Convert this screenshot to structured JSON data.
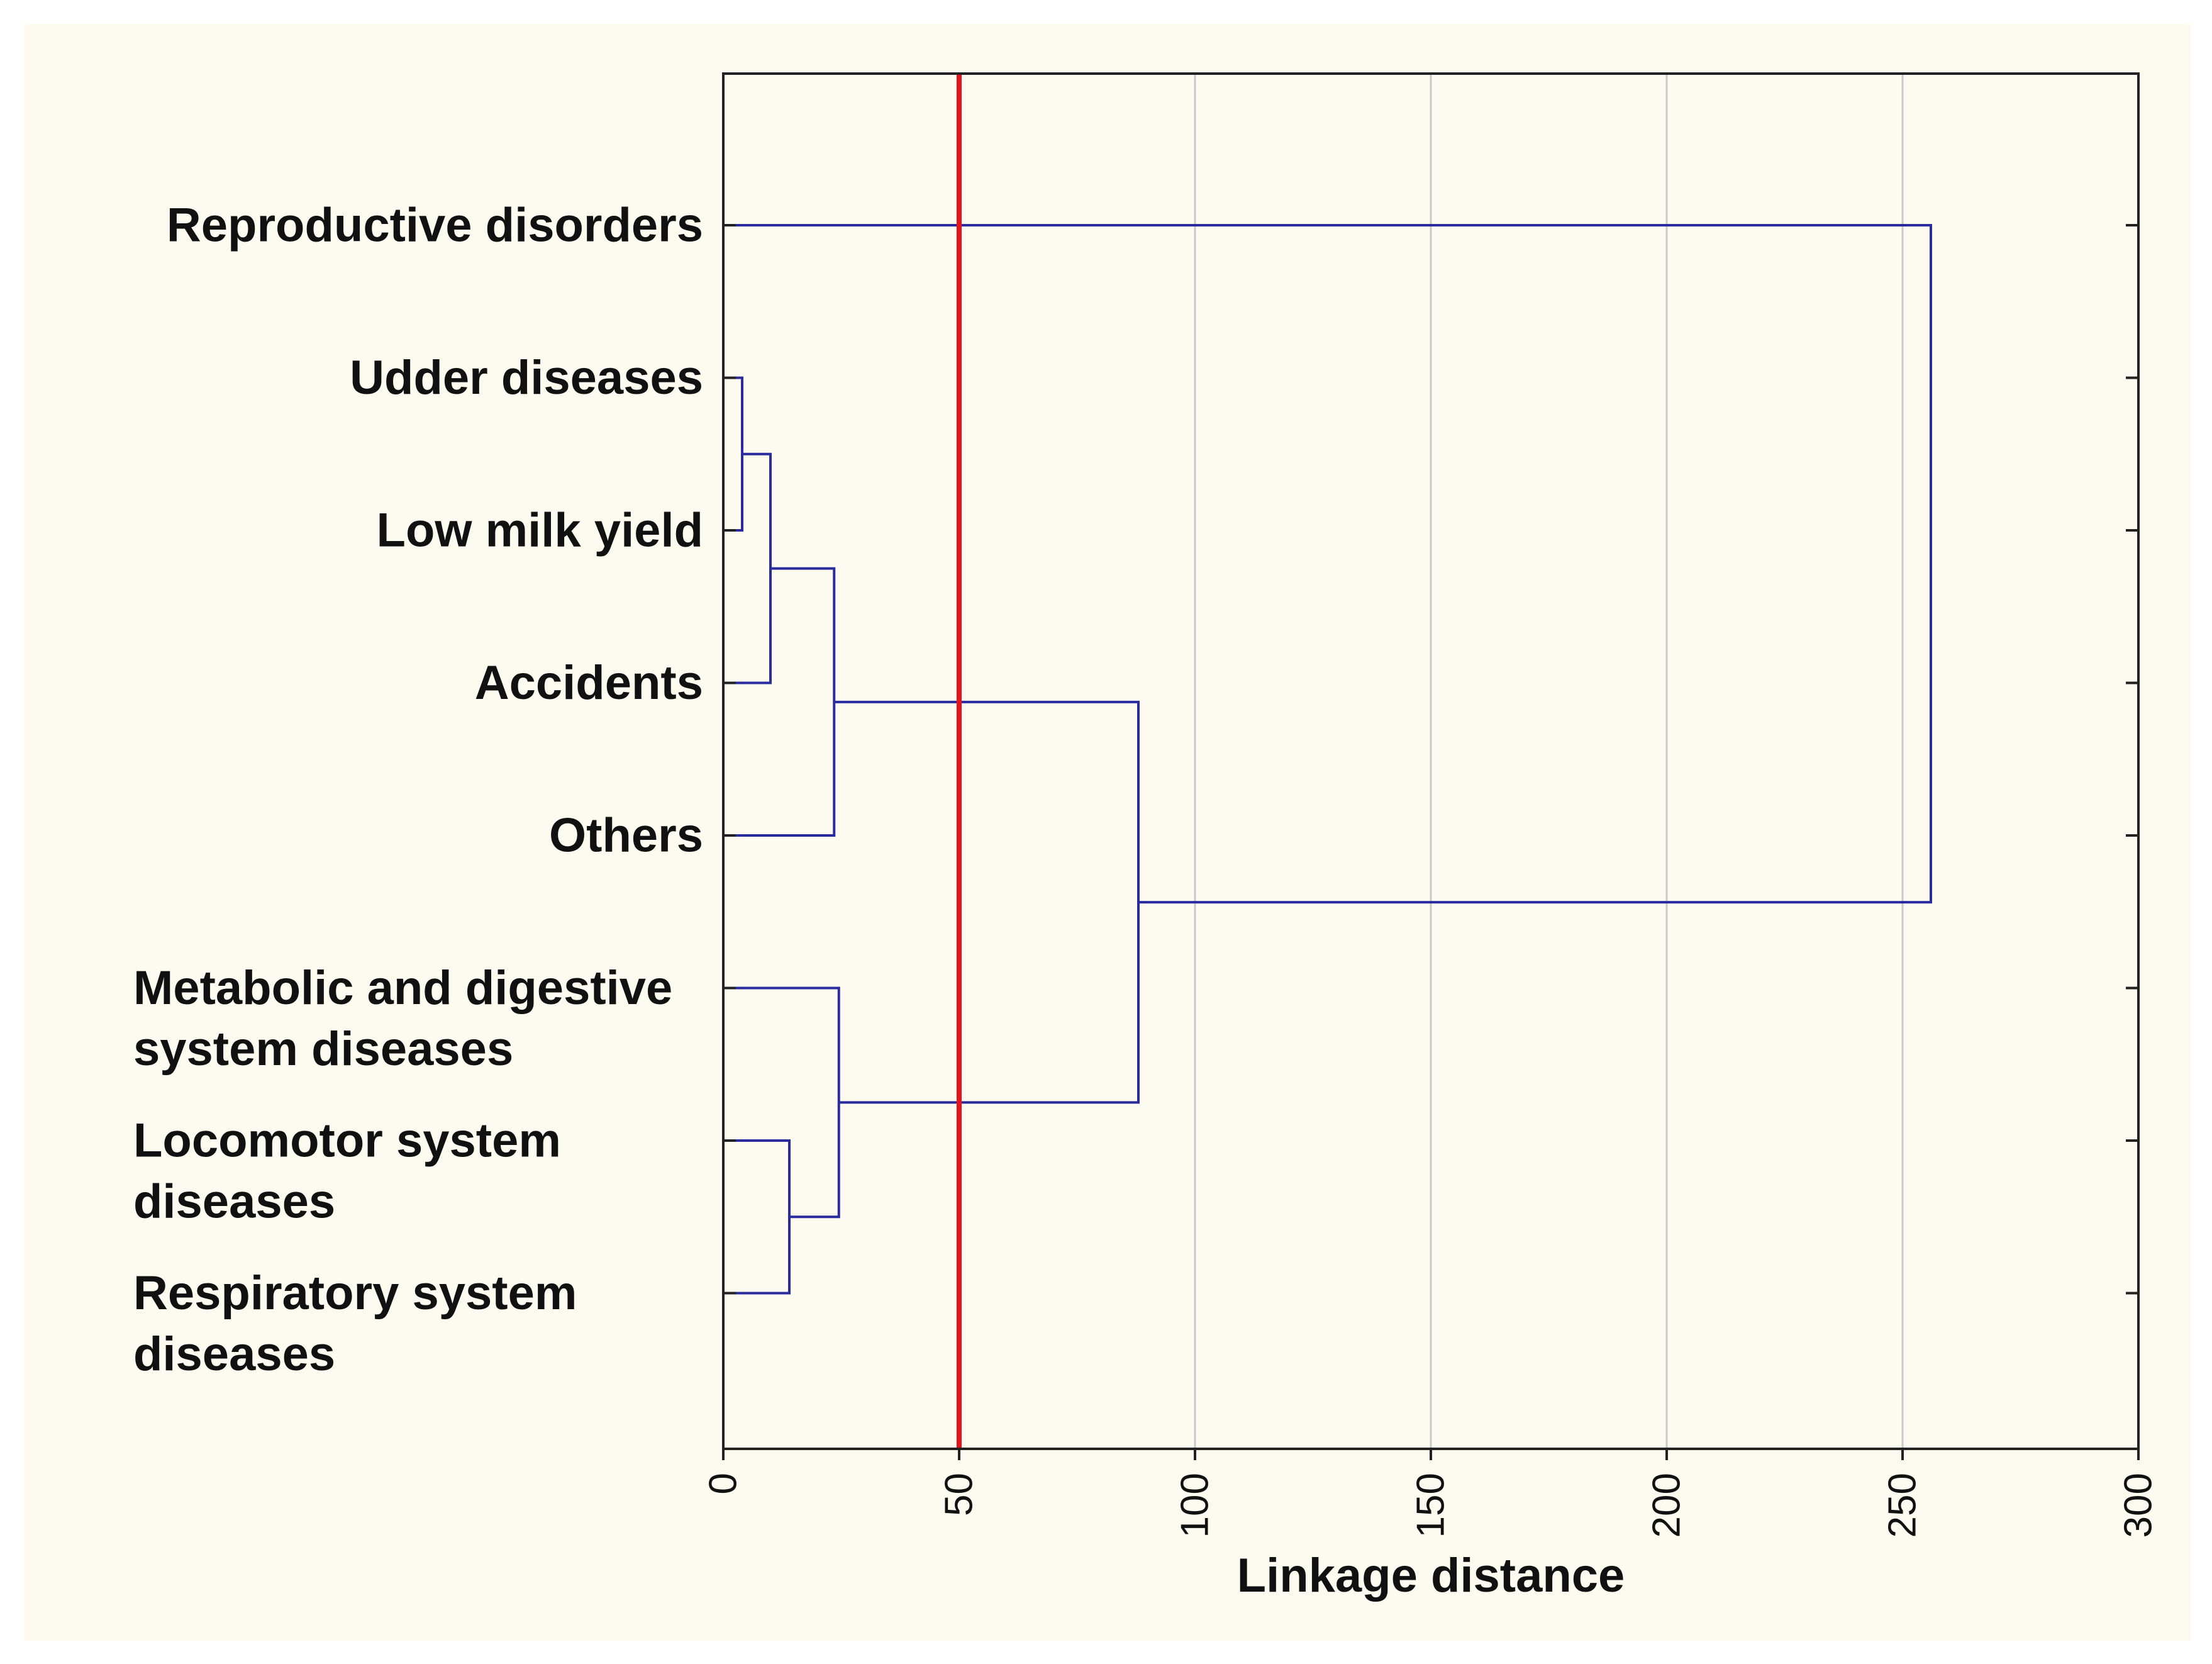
{
  "chart_data": {
    "type": "dendrogram",
    "orientation": "horizontal",
    "xlabel": "Linkage distance",
    "xlim": [
      0,
      300
    ],
    "xticks": [
      0,
      50,
      100,
      150,
      200,
      250,
      300
    ],
    "tick_labels": [
      "0",
      "50",
      "100",
      "150",
      "200",
      "250",
      "300"
    ],
    "grid": true,
    "cut_line": {
      "x": 50,
      "color": "#e8141b"
    },
    "line_color": "#2b2ba0",
    "leaves": [
      {
        "id": "reproductive",
        "label_lines": [
          "Reproductive disorders"
        ],
        "align": "right"
      },
      {
        "id": "udder",
        "label_lines": [
          "Udder diseases"
        ],
        "align": "right"
      },
      {
        "id": "lowmilk",
        "label_lines": [
          "Low milk yield"
        ],
        "align": "right"
      },
      {
        "id": "accidents",
        "label_lines": [
          "Accidents"
        ],
        "align": "right"
      },
      {
        "id": "others",
        "label_lines": [
          "Others"
        ],
        "align": "right"
      },
      {
        "id": "metabolic",
        "label_lines": [
          "Metabolic and digestive",
          "system diseases"
        ],
        "align": "left"
      },
      {
        "id": "locomotor",
        "label_lines": [
          "Locomotor system",
          "diseases"
        ],
        "align": "left"
      },
      {
        "id": "respiratory",
        "label_lines": [
          "Respiratory system",
          "diseases"
        ],
        "align": "left"
      }
    ],
    "merges": [
      {
        "left": "udder",
        "right": "lowmilk",
        "distance": 4
      },
      {
        "left": "m0",
        "right": "accidents",
        "distance": 10
      },
      {
        "left": "m1",
        "right": "others",
        "distance": 23.5
      },
      {
        "left": "locomotor",
        "right": "respiratory",
        "distance": 14
      },
      {
        "left": "metabolic",
        "right": "m3",
        "distance": 24.5
      },
      {
        "left": "m2",
        "right": "m4",
        "distance": 88
      },
      {
        "left": "reproductive",
        "right": "m5",
        "distance": 256
      }
    ]
  }
}
